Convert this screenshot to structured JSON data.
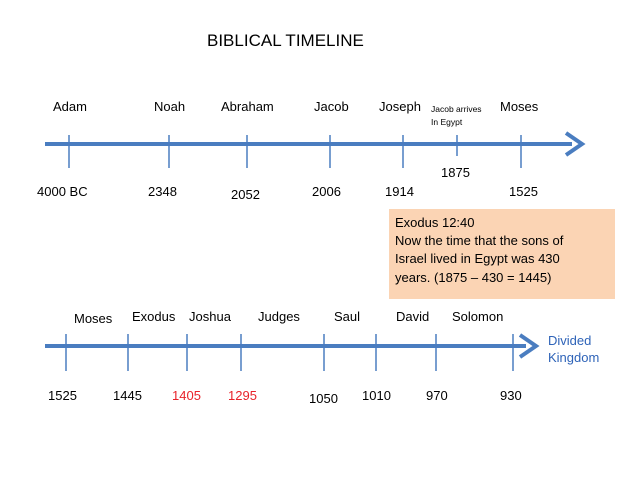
{
  "title": "BIBLICAL TIMELINE",
  "colors": {
    "line": "#4a7dc0",
    "tick": "#4a7dc0",
    "highlight": "#e8232a",
    "callout_bg": "#fbd4b4",
    "blue_text": "#2e63b8"
  },
  "timeline1": {
    "events": [
      "Adam",
      "Noah",
      "Abraham",
      "Jacob",
      "Joseph",
      "Moses"
    ],
    "special_event_line1": "Jacob arrives",
    "special_event_line2": "In Egypt",
    "dates": [
      "4000 BC",
      "2348",
      "2052",
      "2006",
      "1914",
      "1525"
    ],
    "special_date": "1875"
  },
  "callout": {
    "line1": "Exodus 12:40",
    "line2": "Now the time that the sons of",
    "line3": "Israel lived in Egypt was 430",
    "line4": "years. (1875 – 430 = 1445)"
  },
  "timeline2": {
    "events": [
      "Moses",
      "Exodus",
      "Joshua",
      "Judges",
      "Saul",
      "David",
      "Solomon"
    ],
    "end_label_line1": "Divided",
    "end_label_line2": "Kingdom",
    "dates": [
      "1525",
      "1445",
      "1405",
      "1295",
      "1050",
      "1010",
      "970",
      "930"
    ]
  }
}
